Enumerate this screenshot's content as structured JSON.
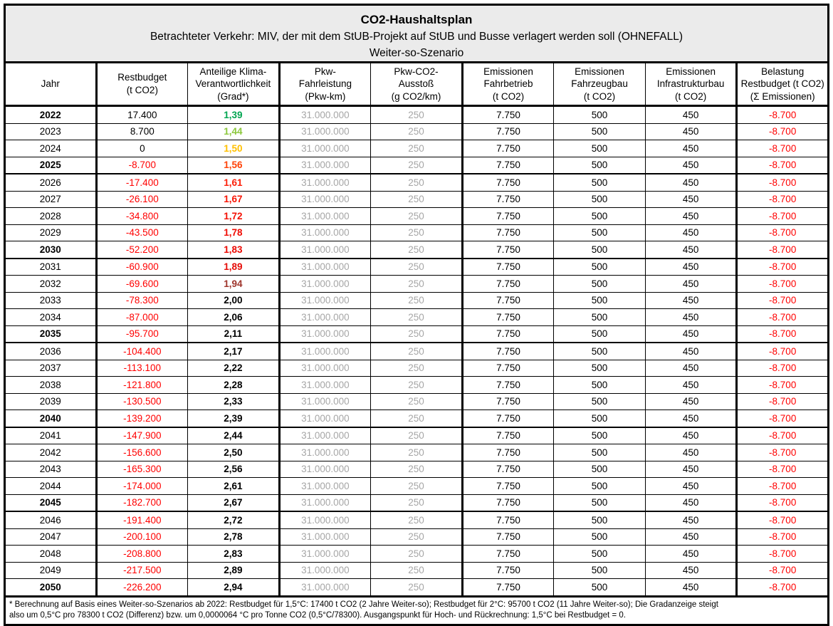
{
  "title": {
    "line1": "CO2-Haushaltsplan",
    "line2": "Betrachteter Verkehr: MIV, der mit dem StUB-Projekt auf StUB und Busse verlagert werden soll (OHNEFALL)",
    "line3": "Weiter-so-Szenario"
  },
  "colors": {
    "title_bg": "#EBEBEB",
    "muted_text": "#A6A6A6",
    "negative": "#FF0000",
    "border": "#000000"
  },
  "columns": [
    {
      "id": "jahr",
      "label": "Jahr",
      "thick_right": true
    },
    {
      "id": "restbudget",
      "label": "Restbudget\n(t CO2)",
      "thick_right": false
    },
    {
      "id": "grad",
      "label": "Anteilige Klima-\nVerantwortlichkeit\n(Grad*)",
      "thick_right": true
    },
    {
      "id": "fahrleistung",
      "label": "Pkw-\nFahrleistung\n(Pkw-km)",
      "thick_right": false,
      "muted": true
    },
    {
      "id": "ausstoss",
      "label": "Pkw-CO2-\nAusstoß\n(g CO2/km)",
      "thick_right": true,
      "muted": true
    },
    {
      "id": "fahrbetrieb",
      "label": "Emissionen\nFahrbetrieb\n(t CO2)",
      "thick_right": false
    },
    {
      "id": "fahrzeugbau",
      "label": "Emissionen\nFahrzeugbau\n(t CO2)",
      "thick_right": false
    },
    {
      "id": "infrastrukturbau",
      "label": "Emissionen\nInfrastrukturbau\n(t CO2)",
      "thick_right": true
    },
    {
      "id": "belastung",
      "label": "Belastung\nRestbudget (t CO2)\n(Σ Emissionen)",
      "thick_right": false,
      "negative": true
    }
  ],
  "rows": [
    {
      "jahr": "2022",
      "bold": true,
      "group_start": false,
      "restbudget": "17.400",
      "restbudget_color": "#000000",
      "grad": "1,39",
      "grad_color": "#00A550",
      "fahrleistung": "31.000.000",
      "ausstoss": "250",
      "fahrbetrieb": "7.750",
      "fahrzeugbau": "500",
      "infrastrukturbau": "450",
      "belastung": "-8.700"
    },
    {
      "jahr": "2023",
      "bold": false,
      "group_start": false,
      "restbudget": "8.700",
      "restbudget_color": "#000000",
      "grad": "1,44",
      "grad_color": "#8CC83C",
      "fahrleistung": "31.000.000",
      "ausstoss": "250",
      "fahrbetrieb": "7.750",
      "fahrzeugbau": "500",
      "infrastrukturbau": "450",
      "belastung": "-8.700"
    },
    {
      "jahr": "2024",
      "bold": false,
      "group_start": false,
      "restbudget": "0",
      "restbudget_color": "#000000",
      "grad": "1,50",
      "grad_color": "#FFC000",
      "fahrleistung": "31.000.000",
      "ausstoss": "250",
      "fahrbetrieb": "7.750",
      "fahrzeugbau": "500",
      "infrastrukturbau": "450",
      "belastung": "-8.700"
    },
    {
      "jahr": "2025",
      "bold": true,
      "group_start": false,
      "restbudget": "-8.700",
      "restbudget_color": "#FF0000",
      "grad": "1,56",
      "grad_color": "#FF4208",
      "fahrleistung": "31.000.000",
      "ausstoss": "250",
      "fahrbetrieb": "7.750",
      "fahrzeugbau": "500",
      "infrastrukturbau": "450",
      "belastung": "-8.700"
    },
    {
      "jahr": "2026",
      "bold": false,
      "group_start": true,
      "restbudget": "-17.400",
      "restbudget_color": "#FF0000",
      "grad": "1,61",
      "grad_color": "#FC1F08",
      "fahrleistung": "31.000.000",
      "ausstoss": "250",
      "fahrbetrieb": "7.750",
      "fahrzeugbau": "500",
      "infrastrukturbau": "450",
      "belastung": "-8.700"
    },
    {
      "jahr": "2027",
      "bold": false,
      "group_start": false,
      "restbudget": "-26.100",
      "restbudget_color": "#FF0000",
      "grad": "1,67",
      "grad_color": "#F81505",
      "fahrleistung": "31.000.000",
      "ausstoss": "250",
      "fahrbetrieb": "7.750",
      "fahrzeugbau": "500",
      "infrastrukturbau": "450",
      "belastung": "-8.700"
    },
    {
      "jahr": "2028",
      "bold": false,
      "group_start": false,
      "restbudget": "-34.800",
      "restbudget_color": "#FF0000",
      "grad": "1,72",
      "grad_color": "#F41003",
      "fahrleistung": "31.000.000",
      "ausstoss": "250",
      "fahrbetrieb": "7.750",
      "fahrzeugbau": "500",
      "infrastrukturbau": "450",
      "belastung": "-8.700"
    },
    {
      "jahr": "2029",
      "bold": false,
      "group_start": false,
      "restbudget": "-43.500",
      "restbudget_color": "#FF0000",
      "grad": "1,78",
      "grad_color": "#F00B02",
      "fahrleistung": "31.000.000",
      "ausstoss": "250",
      "fahrbetrieb": "7.750",
      "fahrzeugbau": "500",
      "infrastrukturbau": "450",
      "belastung": "-8.700"
    },
    {
      "jahr": "2030",
      "bold": true,
      "group_start": false,
      "restbudget": "-52.200",
      "restbudget_color": "#FF0000",
      "grad": "1,83",
      "grad_color": "#EC0801",
      "fahrleistung": "31.000.000",
      "ausstoss": "250",
      "fahrbetrieb": "7.750",
      "fahrzeugbau": "500",
      "infrastrukturbau": "450",
      "belastung": "-8.700"
    },
    {
      "jahr": "2031",
      "bold": false,
      "group_start": true,
      "restbudget": "-60.900",
      "restbudget_color": "#FF0000",
      "grad": "1,89",
      "grad_color": "#E50C07",
      "fahrleistung": "31.000.000",
      "ausstoss": "250",
      "fahrbetrieb": "7.750",
      "fahrzeugbau": "500",
      "infrastrukturbau": "450",
      "belastung": "-8.700"
    },
    {
      "jahr": "2032",
      "bold": false,
      "group_start": false,
      "restbudget": "-69.600",
      "restbudget_color": "#FF0000",
      "grad": "1,94",
      "grad_color": "#9E342B",
      "fahrleistung": "31.000.000",
      "ausstoss": "250",
      "fahrbetrieb": "7.750",
      "fahrzeugbau": "500",
      "infrastrukturbau": "450",
      "belastung": "-8.700"
    },
    {
      "jahr": "2033",
      "bold": false,
      "group_start": false,
      "restbudget": "-78.300",
      "restbudget_color": "#FF0000",
      "grad": "2,00",
      "grad_color": "#000000",
      "fahrleistung": "31.000.000",
      "ausstoss": "250",
      "fahrbetrieb": "7.750",
      "fahrzeugbau": "500",
      "infrastrukturbau": "450",
      "belastung": "-8.700"
    },
    {
      "jahr": "2034",
      "bold": false,
      "group_start": false,
      "restbudget": "-87.000",
      "restbudget_color": "#FF0000",
      "grad": "2,06",
      "grad_color": "#000000",
      "fahrleistung": "31.000.000",
      "ausstoss": "250",
      "fahrbetrieb": "7.750",
      "fahrzeugbau": "500",
      "infrastrukturbau": "450",
      "belastung": "-8.700"
    },
    {
      "jahr": "2035",
      "bold": true,
      "group_start": false,
      "restbudget": "-95.700",
      "restbudget_color": "#FF0000",
      "grad": "2,11",
      "grad_color": "#000000",
      "fahrleistung": "31.000.000",
      "ausstoss": "250",
      "fahrbetrieb": "7.750",
      "fahrzeugbau": "500",
      "infrastrukturbau": "450",
      "belastung": "-8.700"
    },
    {
      "jahr": "2036",
      "bold": false,
      "group_start": true,
      "restbudget": "-104.400",
      "restbudget_color": "#FF0000",
      "grad": "2,17",
      "grad_color": "#000000",
      "fahrleistung": "31.000.000",
      "ausstoss": "250",
      "fahrbetrieb": "7.750",
      "fahrzeugbau": "500",
      "infrastrukturbau": "450",
      "belastung": "-8.700"
    },
    {
      "jahr": "2037",
      "bold": false,
      "group_start": false,
      "restbudget": "-113.100",
      "restbudget_color": "#FF0000",
      "grad": "2,22",
      "grad_color": "#000000",
      "fahrleistung": "31.000.000",
      "ausstoss": "250",
      "fahrbetrieb": "7.750",
      "fahrzeugbau": "500",
      "infrastrukturbau": "450",
      "belastung": "-8.700"
    },
    {
      "jahr": "2038",
      "bold": false,
      "group_start": false,
      "restbudget": "-121.800",
      "restbudget_color": "#FF0000",
      "grad": "2,28",
      "grad_color": "#000000",
      "fahrleistung": "31.000.000",
      "ausstoss": "250",
      "fahrbetrieb": "7.750",
      "fahrzeugbau": "500",
      "infrastrukturbau": "450",
      "belastung": "-8.700"
    },
    {
      "jahr": "2039",
      "bold": false,
      "group_start": false,
      "restbudget": "-130.500",
      "restbudget_color": "#FF0000",
      "grad": "2,33",
      "grad_color": "#000000",
      "fahrleistung": "31.000.000",
      "ausstoss": "250",
      "fahrbetrieb": "7.750",
      "fahrzeugbau": "500",
      "infrastrukturbau": "450",
      "belastung": "-8.700"
    },
    {
      "jahr": "2040",
      "bold": true,
      "group_start": false,
      "restbudget": "-139.200",
      "restbudget_color": "#FF0000",
      "grad": "2,39",
      "grad_color": "#000000",
      "fahrleistung": "31.000.000",
      "ausstoss": "250",
      "fahrbetrieb": "7.750",
      "fahrzeugbau": "500",
      "infrastrukturbau": "450",
      "belastung": "-8.700"
    },
    {
      "jahr": "2041",
      "bold": false,
      "group_start": true,
      "restbudget": "-147.900",
      "restbudget_color": "#FF0000",
      "grad": "2,44",
      "grad_color": "#000000",
      "fahrleistung": "31.000.000",
      "ausstoss": "250",
      "fahrbetrieb": "7.750",
      "fahrzeugbau": "500",
      "infrastrukturbau": "450",
      "belastung": "-8.700"
    },
    {
      "jahr": "2042",
      "bold": false,
      "group_start": false,
      "restbudget": "-156.600",
      "restbudget_color": "#FF0000",
      "grad": "2,50",
      "grad_color": "#000000",
      "fahrleistung": "31.000.000",
      "ausstoss": "250",
      "fahrbetrieb": "7.750",
      "fahrzeugbau": "500",
      "infrastrukturbau": "450",
      "belastung": "-8.700"
    },
    {
      "jahr": "2043",
      "bold": false,
      "group_start": false,
      "restbudget": "-165.300",
      "restbudget_color": "#FF0000",
      "grad": "2,56",
      "grad_color": "#000000",
      "fahrleistung": "31.000.000",
      "ausstoss": "250",
      "fahrbetrieb": "7.750",
      "fahrzeugbau": "500",
      "infrastrukturbau": "450",
      "belastung": "-8.700"
    },
    {
      "jahr": "2044",
      "bold": false,
      "group_start": false,
      "restbudget": "-174.000",
      "restbudget_color": "#FF0000",
      "grad": "2,61",
      "grad_color": "#000000",
      "fahrleistung": "31.000.000",
      "ausstoss": "250",
      "fahrbetrieb": "7.750",
      "fahrzeugbau": "500",
      "infrastrukturbau": "450",
      "belastung": "-8.700"
    },
    {
      "jahr": "2045",
      "bold": true,
      "group_start": false,
      "restbudget": "-182.700",
      "restbudget_color": "#FF0000",
      "grad": "2,67",
      "grad_color": "#000000",
      "fahrleistung": "31.000.000",
      "ausstoss": "250",
      "fahrbetrieb": "7.750",
      "fahrzeugbau": "500",
      "infrastrukturbau": "450",
      "belastung": "-8.700"
    },
    {
      "jahr": "2046",
      "bold": false,
      "group_start": true,
      "restbudget": "-191.400",
      "restbudget_color": "#FF0000",
      "grad": "2,72",
      "grad_color": "#000000",
      "fahrleistung": "31.000.000",
      "ausstoss": "250",
      "fahrbetrieb": "7.750",
      "fahrzeugbau": "500",
      "infrastrukturbau": "450",
      "belastung": "-8.700"
    },
    {
      "jahr": "2047",
      "bold": false,
      "group_start": false,
      "restbudget": "-200.100",
      "restbudget_color": "#FF0000",
      "grad": "2,78",
      "grad_color": "#000000",
      "fahrleistung": "31.000.000",
      "ausstoss": "250",
      "fahrbetrieb": "7.750",
      "fahrzeugbau": "500",
      "infrastrukturbau": "450",
      "belastung": "-8.700"
    },
    {
      "jahr": "2048",
      "bold": false,
      "group_start": false,
      "restbudget": "-208.800",
      "restbudget_color": "#FF0000",
      "grad": "2,83",
      "grad_color": "#000000",
      "fahrleistung": "31.000.000",
      "ausstoss": "250",
      "fahrbetrieb": "7.750",
      "fahrzeugbau": "500",
      "infrastrukturbau": "450",
      "belastung": "-8.700"
    },
    {
      "jahr": "2049",
      "bold": false,
      "group_start": false,
      "restbudget": "-217.500",
      "restbudget_color": "#FF0000",
      "grad": "2,89",
      "grad_color": "#000000",
      "fahrleistung": "31.000.000",
      "ausstoss": "250",
      "fahrbetrieb": "7.750",
      "fahrzeugbau": "500",
      "infrastrukturbau": "450",
      "belastung": "-8.700"
    },
    {
      "jahr": "2050",
      "bold": true,
      "group_start": false,
      "restbudget": "-226.200",
      "restbudget_color": "#FF0000",
      "grad": "2,94",
      "grad_color": "#000000",
      "fahrleistung": "31.000.000",
      "ausstoss": "250",
      "fahrbetrieb": "7.750",
      "fahrzeugbau": "500",
      "infrastrukturbau": "450",
      "belastung": "-8.700"
    }
  ],
  "footnote": {
    "line1": "* Berechnung auf Basis eines Weiter-so-Szenarios ab 2022: Restbudget für 1,5°C: 17400 t CO2 (2 Jahre Weiter-so); Restbudget für 2°C: 95700 t CO2 (11 Jahre Weiter-so); Die Gradanzeige steigt",
    "line2": "also um 0,5°C pro 78300 t CO2 (Differenz) bzw. um 0,0000064 °C pro Tonne CO2 (0,5°C/78300). Ausgangspunkt für Hoch- und Rückrechnung: 1,5°C bei Restbudget = 0."
  }
}
